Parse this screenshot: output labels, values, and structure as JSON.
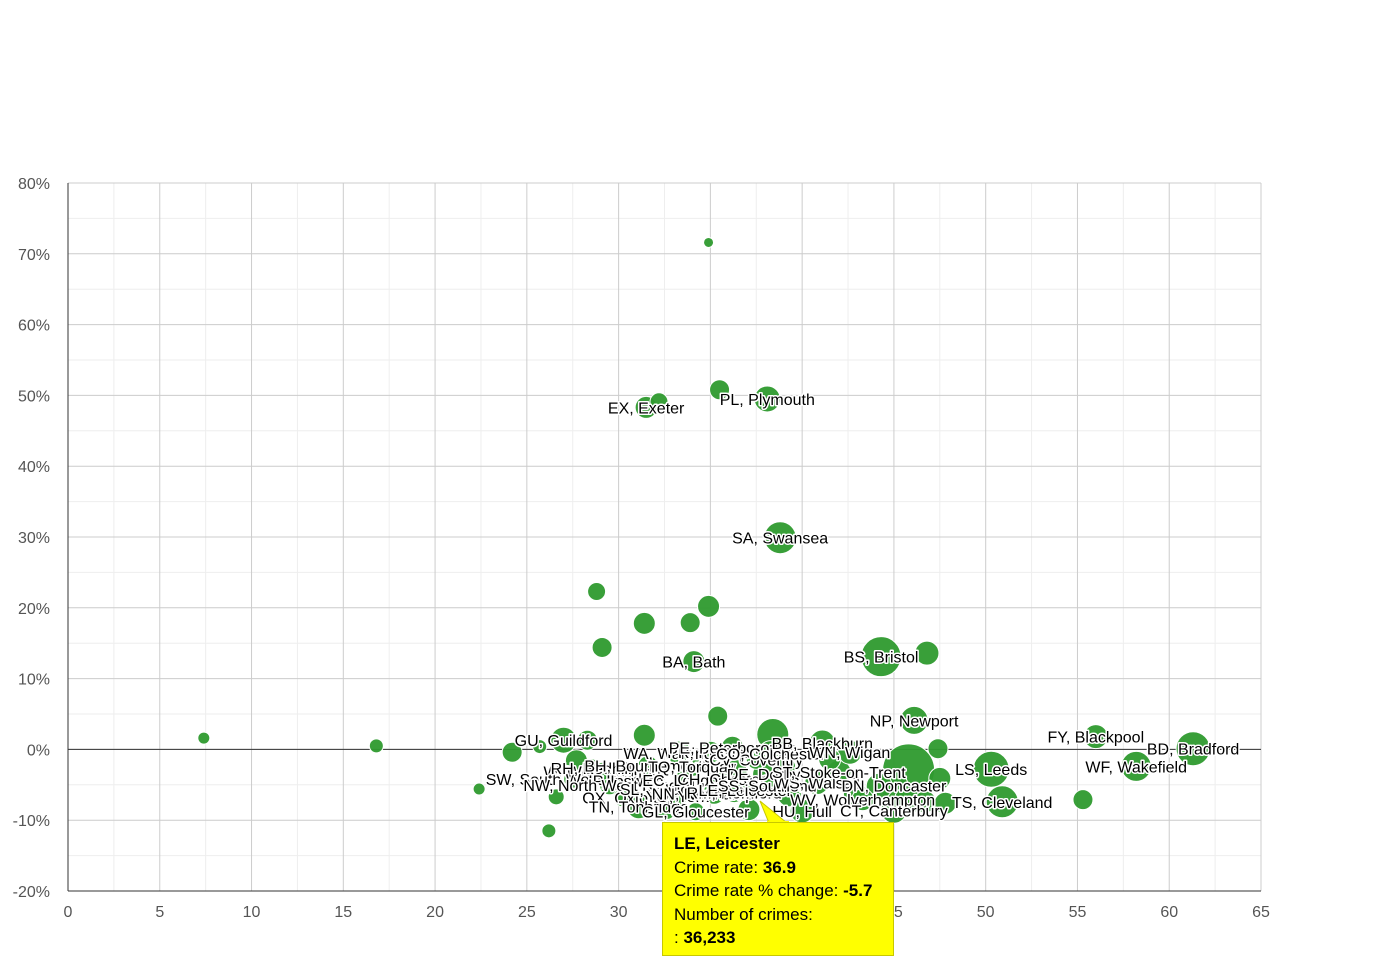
{
  "chart_data": {
    "type": "scatter",
    "title": "",
    "xlabel": "",
    "ylabel": "",
    "xlim": [
      0,
      65
    ],
    "ylim": [
      -20,
      80
    ],
    "x_ticks": [
      "0",
      "5",
      "10",
      "15",
      "20",
      "25",
      "30",
      "35",
      "40",
      "45",
      "50",
      "55",
      "60",
      "65"
    ],
    "y_ticks": [
      "-20%",
      "-10%",
      "0%",
      "10%",
      "20%",
      "30%",
      "40%",
      "50%",
      "60%",
      "70%",
      "80%"
    ],
    "grid": true,
    "bubble_color": "#2e9a2e",
    "points": [
      {
        "x": 7.4,
        "y": 1.6,
        "size": 6,
        "label": ""
      },
      {
        "x": 16.8,
        "y": 0.5,
        "size": 7,
        "label": ""
      },
      {
        "x": 34.9,
        "y": 71.6,
        "size": 5,
        "label": ""
      },
      {
        "x": 22.4,
        "y": -5.6,
        "size": 6,
        "label": ""
      },
      {
        "x": 26.2,
        "y": -11.5,
        "size": 7,
        "label": ""
      },
      {
        "x": 31.5,
        "y": 48.3,
        "size": 11,
        "label": "EX, Exeter"
      },
      {
        "x": 32.2,
        "y": 49.1,
        "size": 9,
        "label": ""
      },
      {
        "x": 35.5,
        "y": 50.8,
        "size": 10,
        "label": ""
      },
      {
        "x": 38.1,
        "y": 49.5,
        "size": 13,
        "label": "PL, Plymouth"
      },
      {
        "x": 38.8,
        "y": 29.9,
        "size": 16,
        "label": "SA, Swansea"
      },
      {
        "x": 28.8,
        "y": 22.3,
        "size": 9,
        "label": ""
      },
      {
        "x": 31.4,
        "y": 17.8,
        "size": 11,
        "label": ""
      },
      {
        "x": 33.9,
        "y": 17.9,
        "size": 10,
        "label": ""
      },
      {
        "x": 34.9,
        "y": 20.2,
        "size": 11,
        "label": ""
      },
      {
        "x": 29.1,
        "y": 14.4,
        "size": 10,
        "label": ""
      },
      {
        "x": 34.1,
        "y": 12.4,
        "size": 11,
        "label": "BA, Bath"
      },
      {
        "x": 44.3,
        "y": 13.1,
        "size": 20,
        "label": "BS, Bristol"
      },
      {
        "x": 46.8,
        "y": 13.6,
        "size": 12,
        "label": ""
      },
      {
        "x": 35.4,
        "y": 4.7,
        "size": 10,
        "label": ""
      },
      {
        "x": 46.1,
        "y": 4.1,
        "size": 14,
        "label": "NP, Newport"
      },
      {
        "x": 47.4,
        "y": 0.1,
        "size": 10,
        "label": ""
      },
      {
        "x": 56.0,
        "y": 1.8,
        "size": 12,
        "label": "FY, Blackpool"
      },
      {
        "x": 61.3,
        "y": 0.1,
        "size": 17,
        "label": "BD, Bradford"
      },
      {
        "x": 58.2,
        "y": -2.4,
        "size": 15,
        "label": "WF, Wakefield"
      },
      {
        "x": 50.3,
        "y": -2.8,
        "size": 18,
        "label": "LS, Leeds"
      },
      {
        "x": 55.3,
        "y": -7.1,
        "size": 10,
        "label": ""
      },
      {
        "x": 50.9,
        "y": -7.4,
        "size": 16,
        "label": "TS, Cleveland"
      },
      {
        "x": 24.2,
        "y": -0.4,
        "size": 10,
        "label": ""
      },
      {
        "x": 25.7,
        "y": 0.4,
        "size": 7,
        "label": ""
      },
      {
        "x": 27.0,
        "y": 1.3,
        "size": 13,
        "label": "GU, Guildford"
      },
      {
        "x": 28.3,
        "y": 1.3,
        "size": 10,
        "label": ""
      },
      {
        "x": 27.7,
        "y": -1.6,
        "size": 11,
        "label": ""
      },
      {
        "x": 26.6,
        "y": -6.7,
        "size": 8,
        "label": ""
      },
      {
        "x": 29.1,
        "y": -3.1,
        "size": 9,
        "label": "W, West London"
      },
      {
        "x": 27.5,
        "y": -4.2,
        "size": 9,
        "label": "SW, South West London"
      },
      {
        "x": 28.5,
        "y": -2.6,
        "size": 9,
        "label": "RH, Redhill"
      },
      {
        "x": 30.4,
        "y": -4.4,
        "size": 11,
        "label": "IP, Ipswich"
      },
      {
        "x": 29.5,
        "y": -5.0,
        "size": 10,
        "label": "NW, North West London"
      },
      {
        "x": 30.2,
        "y": -6.8,
        "size": 9,
        "label": "OX, Oxford"
      },
      {
        "x": 31.4,
        "y": 2.0,
        "size": 11,
        "label": ""
      },
      {
        "x": 31.6,
        "y": -2.3,
        "size": 10,
        "label": "BH, Bournemouth"
      },
      {
        "x": 32.2,
        "y": -5.6,
        "size": 10,
        "label": "SL, Slough"
      },
      {
        "x": 31.1,
        "y": -8.1,
        "size": 12,
        "label": "TN, Tonbridge"
      },
      {
        "x": 32.6,
        "y": -8.5,
        "size": 10,
        "label": ""
      },
      {
        "x": 33.3,
        "y": -0.5,
        "size": 12,
        "label": "WA, Warrington"
      },
      {
        "x": 33.6,
        "y": -4.3,
        "size": 10,
        "label": "EC, London"
      },
      {
        "x": 33.2,
        "y": -6.6,
        "size": 10,
        "label": "YO, York"
      },
      {
        "x": 34.2,
        "y": -8.8,
        "size": 9,
        "label": "GL, Gloucester"
      },
      {
        "x": 34.0,
        "y": -2.4,
        "size": 10,
        "label": "TQ, Torquay"
      },
      {
        "x": 35.0,
        "y": -0.4,
        "size": 11,
        "label": "PR, Preston"
      },
      {
        "x": 35.6,
        "y": -4.2,
        "size": 11,
        "label": "CH, Chester"
      },
      {
        "x": 35.2,
        "y": -6.2,
        "size": 11,
        "label": "NN, Northampton"
      },
      {
        "x": 36.2,
        "y": 0.3,
        "size": 11,
        "label": "PE, Peterborough"
      },
      {
        "x": 36.4,
        "y": -3.0,
        "size": 11,
        "label": ""
      },
      {
        "x": 36.3,
        "y": -6.1,
        "size": 10,
        "label": "RM, Romford"
      },
      {
        "x": 36.9,
        "y": -5.7,
        "size": 12,
        "label": "LE, Leicester"
      },
      {
        "x": 37.1,
        "y": -8.5,
        "size": 11,
        "label": ""
      },
      {
        "x": 37.5,
        "y": -1.4,
        "size": 10,
        "label": "CV, Coventry"
      },
      {
        "x": 37.9,
        "y": -3.5,
        "size": 11,
        "label": "DE, Derby"
      },
      {
        "x": 38.1,
        "y": -5.1,
        "size": 11,
        "label": "SS, Southend"
      },
      {
        "x": 38.3,
        "y": -0.6,
        "size": 13,
        "label": "CO, Colchester"
      },
      {
        "x": 38.4,
        "y": 2.1,
        "size": 16,
        "label": ""
      },
      {
        "x": 39.0,
        "y": -2.6,
        "size": 12,
        "label": ""
      },
      {
        "x": 39.3,
        "y": -6.4,
        "size": 12,
        "label": ""
      },
      {
        "x": 40.0,
        "y": -8.7,
        "size": 12,
        "label": "HU, Hull"
      },
      {
        "x": 40.8,
        "y": -4.7,
        "size": 12,
        "label": "WS, Walsall"
      },
      {
        "x": 41.1,
        "y": 0.9,
        "size": 13,
        "label": "BB, Blackburn"
      },
      {
        "x": 41.5,
        "y": -1.4,
        "size": 11,
        "label": ""
      },
      {
        "x": 42.0,
        "y": -3.2,
        "size": 12,
        "label": "ST, Stoke-on-Trent"
      },
      {
        "x": 42.6,
        "y": -0.4,
        "size": 12,
        "label": "WN, Wigan"
      },
      {
        "x": 42.9,
        "y": -6.3,
        "size": 12,
        "label": ""
      },
      {
        "x": 43.3,
        "y": -7.1,
        "size": 11,
        "label": "WV, Wolverhampton"
      },
      {
        "x": 44.2,
        "y": -5.2,
        "size": 13,
        "label": ""
      },
      {
        "x": 45.0,
        "y": -5.1,
        "size": 14,
        "label": "DN, Doncaster"
      },
      {
        "x": 45.8,
        "y": -2.9,
        "size": 26,
        "label": ""
      },
      {
        "x": 45.8,
        "y": -7.1,
        "size": 14,
        "label": ""
      },
      {
        "x": 45.0,
        "y": -8.6,
        "size": 13,
        "label": "CT, Canterbury"
      },
      {
        "x": 46.7,
        "y": -7.4,
        "size": 11,
        "label": ""
      },
      {
        "x": 47.5,
        "y": -4.1,
        "size": 11,
        "label": ""
      },
      {
        "x": 47.8,
        "y": -7.6,
        "size": 11,
        "label": ""
      }
    ],
    "tooltip": {
      "title": "LE, Leicester",
      "crime_rate_label": "Crime rate:",
      "crime_rate_value": "36.9",
      "change_label": "Crime rate % change:",
      "change_value": "-5.7",
      "count_label": "Number of crimes:",
      "count_prefix": ":",
      "count_value": "36,233"
    }
  }
}
